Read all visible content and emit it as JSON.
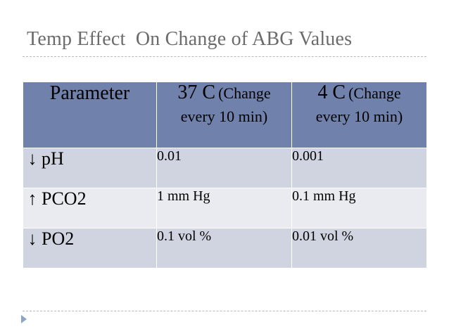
{
  "slide": {
    "title": "Temp Effect  On Change of ABG Values"
  },
  "table": {
    "headers": {
      "parameter": "Parameter",
      "col37": {
        "main": "37 C",
        "sub": "(Change",
        "line2": "every 10 min)"
      },
      "col4": {
        "main": "4 C",
        "sub": "(Change",
        "line2": "every 10 min)"
      }
    },
    "rows": [
      {
        "arrow": "↓",
        "parameter": "pH",
        "at37": "0.01",
        "at4": "0.001"
      },
      {
        "arrow": "↑",
        "parameter": "PCO2",
        "at37": "1 mm Hg",
        "at4": "0.1 mm Hg"
      },
      {
        "arrow": "↓",
        "parameter": "PO2",
        "at37": "0.1 vol %",
        "at4": "0.01 vol %"
      }
    ]
  },
  "colors": {
    "header_bg": "#7081ab",
    "row_dark": "#d0d4e0",
    "row_light": "#e9ebf0",
    "title": "#6b6b6b"
  }
}
